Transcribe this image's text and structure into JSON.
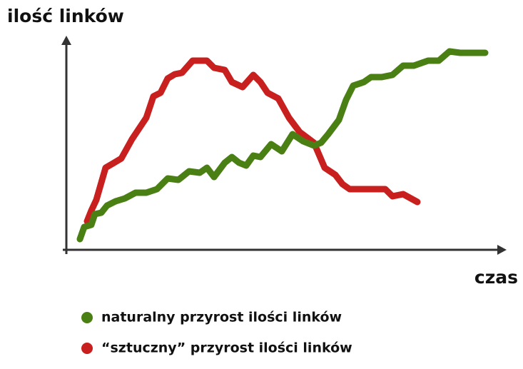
{
  "chart_data": {
    "type": "line",
    "ylabel": "ilość linków",
    "xlabel": "czas",
    "xlim": [
      0,
      612
    ],
    "ylim": [
      0,
      295
    ],
    "series": [
      {
        "name": "naturalny przyrost ilości linków",
        "color": "#4a7f14",
        "x": [
          19,
          25,
          35,
          40,
          49,
          57,
          69,
          82,
          97,
          112,
          127,
          142,
          157,
          172,
          187,
          197,
          207,
          222,
          232,
          242,
          252,
          262,
          272,
          287,
          302,
          317,
          332,
          347,
          357,
          367,
          382,
          392,
          402,
          417,
          427,
          442,
          457,
          472,
          487,
          507,
          522,
          537,
          552,
          572,
          587
        ],
        "values": [
          15,
          32,
          35,
          50,
          52,
          62,
          68,
          72,
          80,
          80,
          85,
          100,
          98,
          110,
          108,
          115,
          102,
          122,
          130,
          122,
          118,
          132,
          130,
          148,
          138,
          162,
          152,
          146,
          150,
          162,
          182,
          210,
          230,
          235,
          242,
          242,
          245,
          258,
          258,
          265,
          265,
          278,
          276,
          276,
          276
        ]
      },
      {
        "name": "“sztuczny” przyrost ilości linków",
        "color": "#c8201e",
        "x": [
          29,
          35,
          42,
          55,
          67,
          77,
          92,
          102,
          112,
          122,
          132,
          142,
          152,
          162,
          177,
          197,
          207,
          222,
          232,
          247,
          262,
          272,
          282,
          297,
          312,
          327,
          347,
          362,
          377,
          387,
          397,
          417,
          447,
          457,
          472,
          492
        ],
        "values": [
          40,
          55,
          70,
          115,
          122,
          128,
          155,
          170,
          185,
          215,
          220,
          240,
          246,
          248,
          265,
          265,
          255,
          252,
          235,
          228,
          245,
          235,
          220,
          212,
          185,
          165,
          150,
          115,
          105,
          92,
          85,
          85,
          85,
          75,
          78,
          67
        ]
      }
    ]
  }
}
